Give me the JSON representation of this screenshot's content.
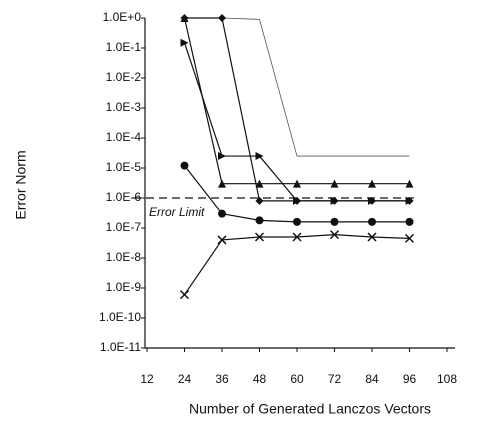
{
  "chart_data": {
    "type": "line",
    "y_label": "Error Norm",
    "x_label": "Number of Generated Lanczos Vectors",
    "log_y": true,
    "x": [
      24,
      36,
      48,
      60,
      72,
      84,
      96
    ],
    "series": [
      {
        "color": "#555555",
        "marker": "none",
        "values": [
          1,
          1,
          0.9,
          2.5e-05,
          2.5e-05,
          2.5e-05,
          2.5e-05
        ]
      },
      {
        "color": "#111111",
        "marker": "diamond",
        "values": [
          1,
          1,
          8e-07,
          8e-07,
          8e-07,
          8e-07,
          8e-07
        ]
      },
      {
        "color": "#111111",
        "marker": "triangle-right",
        "values": [
          0.15,
          2.5e-05,
          2.5e-05,
          8e-07,
          8e-07,
          8e-07,
          8e-07
        ]
      },
      {
        "color": "#111111",
        "marker": "triangle-up",
        "values": [
          1,
          3e-06,
          3e-06,
          3e-06,
          3e-06,
          3e-06,
          3e-06
        ]
      },
      {
        "color": "#111111",
        "marker": "circle",
        "values": [
          1.2e-05,
          3e-07,
          1.8e-07,
          1.6e-07,
          1.6e-07,
          1.6e-07,
          1.6e-07
        ]
      },
      {
        "color": "#111111",
        "marker": "x",
        "values": [
          6e-10,
          4e-08,
          5e-08,
          5e-08,
          6e-08,
          5e-08,
          4.5e-08
        ]
      }
    ],
    "reference_line": {
      "value": 1e-06,
      "label": "Error Limit"
    },
    "xlim": [
      12,
      108
    ],
    "xticks": [
      12,
      24,
      36,
      48,
      60,
      72,
      84,
      96,
      108
    ],
    "ylim": [
      1e-11,
      1
    ],
    "yticks": [
      {
        "value": 1,
        "label": "1.0E+0"
      },
      {
        "value": 0.1,
        "label": "1.0E-1"
      },
      {
        "value": 0.01,
        "label": "1.0E-2"
      },
      {
        "value": 0.001,
        "label": "1.0E-3"
      },
      {
        "value": 0.0001,
        "label": "1.0E-4"
      },
      {
        "value": 1e-05,
        "label": "1.0E-5"
      },
      {
        "value": 1e-06,
        "label": "1.0E-6"
      },
      {
        "value": 1e-07,
        "label": "1.0E-7"
      },
      {
        "value": 1e-08,
        "label": "1.0E-8"
      },
      {
        "value": 1e-09,
        "label": "1.0E-9"
      },
      {
        "value": 1e-10,
        "label": "1.0E-10"
      },
      {
        "value": 1e-11,
        "label": "1.0E-11"
      }
    ]
  }
}
